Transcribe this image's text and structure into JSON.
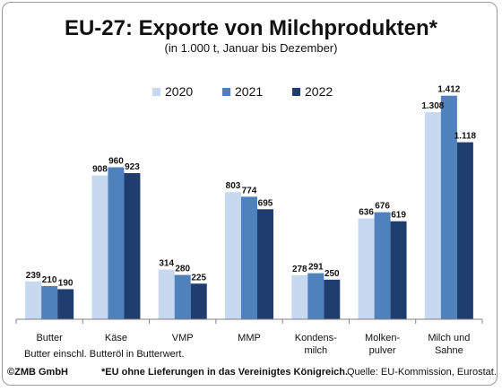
{
  "title": "EU-27: Exporte von Milchprodukten*",
  "subtitle": "(in 1.000 t, Januar bis Dezember)",
  "footnotes": {
    "butter": "Butter einschl. Butteröl in Butterwert.",
    "copyright": "©ZMB GmbH",
    "eu": "*EU ohne Lieferungen in das Vereinigtes Königreich.",
    "source": "Quelle: EU-Kommission, Eurostat."
  },
  "chart_data": {
    "type": "bar",
    "title": "EU-27: Exporte von Milchprodukten*",
    "subtitle": "(in 1.000 t, Januar bis Dezember)",
    "categories": [
      "Butter",
      "Käse",
      "VMP",
      "MMP",
      "Kondens-\nmilch",
      "Molken-\npulver",
      "Milch und\nSahne"
    ],
    "series": [
      {
        "name": "2020",
        "color": "#c6d9f0",
        "values": [
          239,
          908,
          314,
          803,
          278,
          636,
          1308
        ],
        "labels": [
          "239",
          "908",
          "314",
          "803",
          "278",
          "636",
          "1.308"
        ]
      },
      {
        "name": "2021",
        "color": "#4f81bd",
        "values": [
          210,
          960,
          280,
          774,
          291,
          676,
          1412
        ],
        "labels": [
          "210",
          "960",
          "280",
          "774",
          "291",
          "676",
          "1.412"
        ]
      },
      {
        "name": "2022",
        "color": "#1f3d6e",
        "values": [
          190,
          923,
          225,
          695,
          250,
          619,
          1118
        ],
        "labels": [
          "190",
          "923",
          "225",
          "695",
          "250",
          "619",
          "1.118"
        ]
      }
    ],
    "ylim": [
      0,
      1450
    ],
    "grid": false,
    "legend": "top-center"
  }
}
